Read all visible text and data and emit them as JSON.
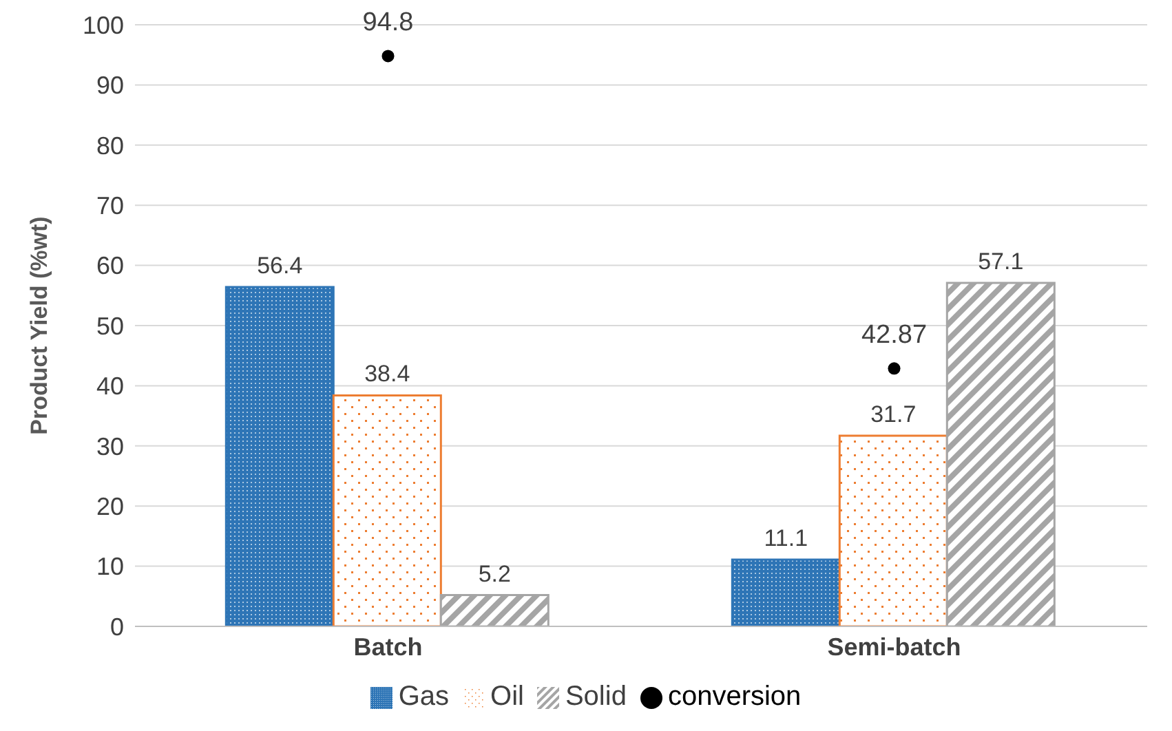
{
  "chart_data": {
    "type": "bar",
    "ylabel": "Product Yield (%wt)",
    "categories": [
      "Batch",
      "Semi-batch"
    ],
    "series": [
      {
        "name": "Gas",
        "color": "#2e75b6",
        "values": [
          56.4,
          11.1
        ]
      },
      {
        "name": "Oil",
        "color": "#ed7d31",
        "values": [
          38.4,
          31.7
        ]
      },
      {
        "name": "Solid",
        "color": "#a5a5a5",
        "values": [
          5.2,
          57.1
        ]
      },
      {
        "name": "conversion",
        "type": "scatter",
        "color": "#000000",
        "marker": "circle",
        "values": [
          94.8,
          42.87
        ]
      }
    ],
    "ylim": [
      0,
      100
    ],
    "yticks": [
      0,
      10,
      20,
      30,
      40,
      50,
      60,
      70,
      80,
      90,
      100
    ],
    "grid": "y",
    "legend": "bottom",
    "data_labels": true
  }
}
